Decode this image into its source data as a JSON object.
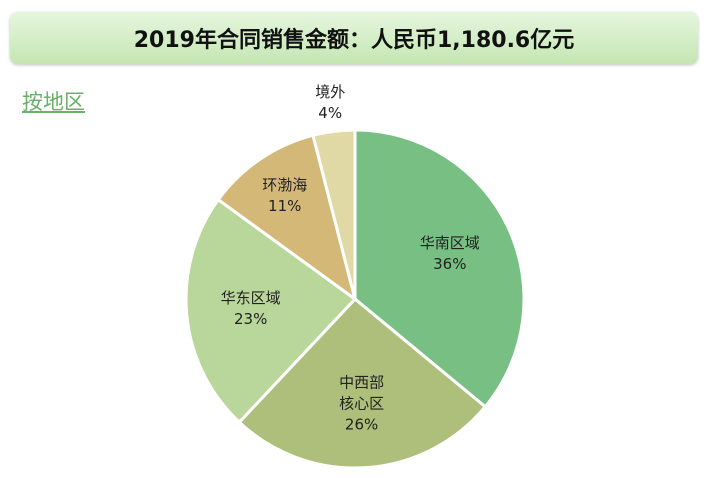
{
  "title": "2019年合同销售金额：人民币1,180.6亿元",
  "subtitle": "按地区",
  "chart_data": {
    "type": "pie",
    "categories": [
      "华南区域",
      "中西部核心区",
      "华东区域",
      "环渤海",
      "境外"
    ],
    "values": [
      36,
      26,
      23,
      11,
      4
    ],
    "value_labels": [
      "36%",
      "26%",
      "23%",
      "11%",
      "4%"
    ],
    "colors": [
      "#77bf82",
      "#adbf7a",
      "#b9d79b",
      "#d4b877",
      "#e0d9a6"
    ]
  }
}
